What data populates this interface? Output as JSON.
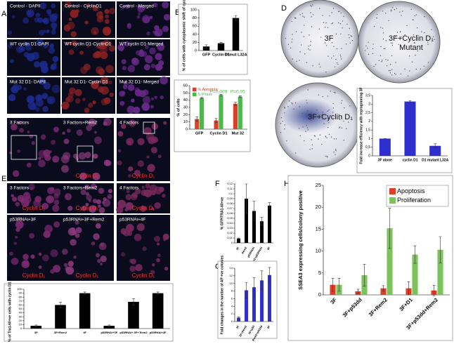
{
  "panel_labels": [
    "A",
    "B",
    "C",
    "D",
    "E",
    "F",
    "G",
    "H"
  ],
  "image_panels": [
    {
      "tiles": [
        {
          "label": "Control - DAPII"
        },
        {
          "label": "Control - CyclinD1"
        },
        {
          "label": "Control - Merged"
        },
        {
          "label": "WT cyclin D1-DAPI"
        },
        {
          "label": "WT cyclin D1-CyclinD1"
        },
        {
          "label": "WT cyclin D1-Merged"
        },
        {
          "label": "Mut 32 D1- DAPII"
        },
        {
          "label": "Mut 32 D1- Cyclin D1"
        },
        {
          "label": "Mut 32 D1- Merged"
        }
      ]
    },
    {
      "tiles": [
        {
          "label": "3 Factors"
        },
        {
          "label": "3 Factors+Rem2",
          "sublabel": "Cyclin D₁"
        },
        {
          "label": "4 Factors",
          "sublabel": "Cyclin D₁"
        },
        {
          "label": "3 Factors",
          "sublabel": "Cyclin D₁"
        },
        {
          "label": "3 Factors+Rem2",
          "sublabel": "Cyclin D₁"
        },
        {
          "label": "4 Factors",
          "sublabel": "Cyclin D₁"
        },
        {
          "label": "p53RNAi+3F",
          "sublabel": "Cyclin D₁"
        },
        {
          "label": "p53RNAi+3F+Rem2",
          "sublabel": "Cyclin D₁"
        },
        {
          "label": "p53RNAi+4F",
          "sublabel": "Cyclin D₁"
        }
      ]
    }
  ],
  "plates": [
    {
      "lines": [
        "3F"
      ]
    },
    {
      "lines": [
        "3F+Cyclin D₁",
        "Mutant"
      ]
    },
    {
      "lines": [
        "3F+Cyclin D₁"
      ]
    }
  ],
  "chart_data": [
    {
      "type": "bar",
      "ylabel": "% of cells with cytoplasmic shift of cyclin D1",
      "categories": [
        "GFP",
        "Cyclin D1",
        "D1mut L32A"
      ],
      "values": [
        10,
        18,
        80
      ],
      "errors": [
        4,
        2,
        6
      ],
      "color": "#000000",
      "ylim": [
        0,
        100
      ],
      "yticks": [
        0,
        20,
        40,
        60,
        80,
        100
      ]
    },
    {
      "type": "bar",
      "ylabel": "% of cells",
      "categories": [
        "GFP",
        "Cyclin D1",
        "Mut 32"
      ],
      "series": [
        {
          "name": "% Apoptotic",
          "color": "#d9412b",
          "values": [
            14,
            12,
            35
          ],
          "errors": [
            3,
            3,
            2
          ]
        },
        {
          "name": "S Phase",
          "color": "#4cb84a",
          "values": [
            43,
            47,
            45
          ],
          "errors": [
            1,
            1,
            1
          ]
        }
      ],
      "annotations": [
        "P=0.009",
        "P=0.05"
      ],
      "annotation_color": "#4cb84a",
      "ylim": [
        0,
        60
      ],
      "yticks": [
        0,
        10,
        20,
        30,
        40,
        50,
        60
      ],
      "legend": "upper left"
    },
    {
      "type": "bar",
      "ylabel": "Fold increase efficiency with reprograming 3F",
      "categories": [
        "3F alone",
        "cyclin D1",
        "D1 mutant L32A"
      ],
      "values": [
        1,
        3.15,
        0.58
      ],
      "errors": [
        0,
        0.05,
        0.12
      ],
      "color": "#2f2fd0",
      "ylim": [
        0,
        3.5
      ],
      "yticks": [
        0,
        {
          "value": 0.5,
          "label": "0,5"
        },
        1,
        {
          "value": 1.5,
          "label": "1,5"
        },
        2,
        {
          "value": 2.5,
          "label": "2,5"
        },
        3,
        {
          "value": 3.5,
          "label": "3,5"
        }
      ]
    },
    {
      "type": "bar",
      "ylabel": "% GFP/TRA1-60+ve",
      "categories": [
        "3F",
        "Rem2",
        "p53RNAi",
        "Rem2+p53RNAi",
        "4F"
      ],
      "values": [
        0.009,
        0.09,
        0.065,
        0.044,
        0.076
      ],
      "errors": [
        0.001,
        0.03,
        0.02,
        0.008,
        0.006
      ],
      "color": "#000000",
      "ylim": [
        0,
        0.12
      ],
      "yticks": [
        0,
        {
          "value": 0.01,
          "label": "0,01"
        },
        {
          "value": 0.02,
          "label": "0,02"
        },
        {
          "value": 0.03,
          "label": "0,03"
        },
        {
          "value": 0.04,
          "label": "0,04"
        },
        {
          "value": 0.05,
          "label": "0,05"
        },
        {
          "value": 0.06,
          "label": "0,06"
        },
        {
          "value": 0.07,
          "label": "0,07"
        },
        {
          "value": 0.08,
          "label": "0,08"
        },
        {
          "value": 0.09,
          "label": "0,09"
        },
        {
          "value": 0.1,
          "label": "0,1"
        },
        {
          "value": 0.11,
          "label": "0,11"
        },
        {
          "value": 0.12,
          "label": "0,12"
        }
      ]
    },
    {
      "type": "bar",
      "ylabel": "Fold changes in the number of AP +ve colonies",
      "categories": [
        "3F",
        "3F+Rem2",
        "3F+p53",
        "Rem2+p53dd",
        "4F"
      ],
      "values": [
        1,
        8.2,
        9,
        10.8,
        12.2
      ],
      "errors": [
        0.2,
        2,
        2.5,
        2.5,
        2
      ],
      "color": "#2f2fd0",
      "ylim": [
        0,
        14
      ],
      "yticks": [
        0,
        2,
        4,
        6,
        8,
        10,
        12,
        14
      ]
    },
    {
      "type": "bar",
      "ylabel": "SSEA3 expressing cells/colony positive",
      "categories": [
        "3F",
        "3F+p53dd",
        "3F+Rem2",
        "3F+D1",
        "3F+p53dd+Rem2"
      ],
      "series": [
        {
          "name": "Apoptosis",
          "color": "#d9412b",
          "values": [
            2.3,
            0.8,
            1.5,
            1.5,
            1.0
          ],
          "errors": [
            1.5,
            0.5,
            0.6,
            1.5,
            1.2
          ]
        },
        {
          "name": "Proliferation",
          "color": "#7cc45a",
          "values": [
            2.3,
            4.5,
            15.2,
            9.2,
            10.3
          ],
          "errors": [
            1.5,
            2.5,
            4.6,
            2,
            3
          ]
        }
      ],
      "ylim": [
        0,
        25
      ],
      "yticks": [
        0,
        5,
        10,
        15,
        20,
        25
      ],
      "legend": "upper right"
    },
    {
      "type": "bar",
      "ylabel": "% of Tra1-60+ve cells with cyclin D1 (N)",
      "categories": [
        "3F",
        "3F+Rem2",
        "4F",
        "p53RNAi+3F",
        "p53RNAi+ 3F+ Rem2",
        "p53RNAi+4F"
      ],
      "values": [
        7,
        60,
        90,
        7,
        68,
        90
      ],
      "errors": [
        2,
        7,
        3,
        2,
        8,
        3
      ],
      "color": "#000000",
      "ylim": [
        0,
        100
      ],
      "yticks": [
        0,
        10,
        20,
        30,
        40,
        50,
        60,
        70,
        80,
        90,
        100
      ]
    }
  ]
}
